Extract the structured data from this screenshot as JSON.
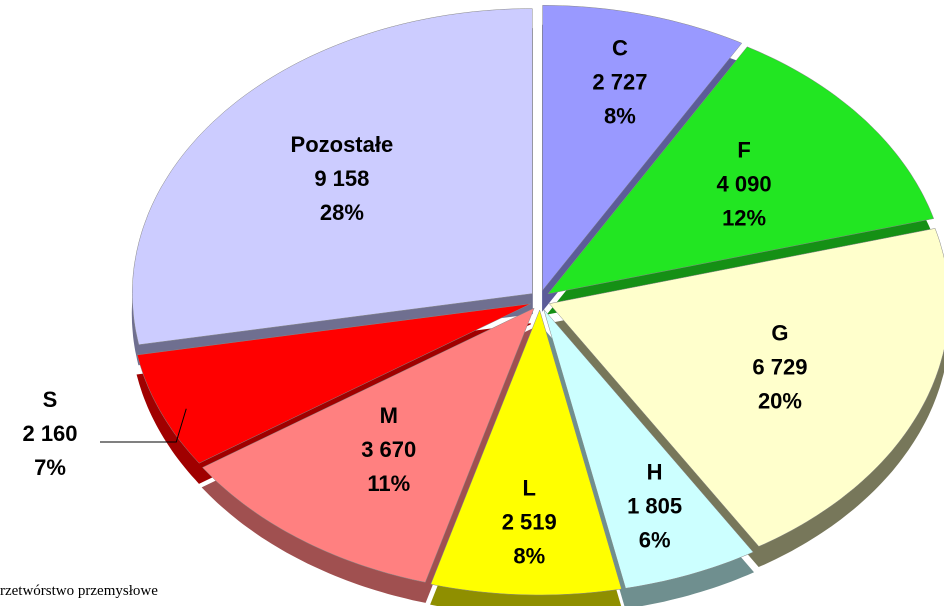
{
  "chart_data": {
    "type": "pie",
    "categories": [
      "C",
      "F",
      "G",
      "H",
      "L",
      "M",
      "S",
      "Pozostałe"
    ],
    "values": [
      2727,
      4090,
      6729,
      1805,
      2519,
      3670,
      2160,
      9158
    ],
    "value_labels": [
      "2 727",
      "4 090",
      "6 729",
      "1 805",
      "2 519",
      "3 670",
      "2 160",
      "9 158"
    ],
    "percents": [
      8,
      12,
      20,
      6,
      8,
      11,
      7,
      28
    ],
    "percent_labels": [
      "8%",
      "12%",
      "20%",
      "6%",
      "8%",
      "11%",
      "7%",
      "28%"
    ],
    "colors": [
      "#9999ff",
      "#22e622",
      "#ffffcc",
      "#ccffff",
      "#ffff00",
      "#ff8080",
      "#ff0000",
      "#ccccff"
    ],
    "side_colors": [
      "#5c5c99",
      "#159015",
      "#77775a",
      "#6f8f8f",
      "#8f8f00",
      "#a05050",
      "#a00000",
      "#6f6f90"
    ],
    "note": "rzetwórstwo przemysłowe"
  }
}
